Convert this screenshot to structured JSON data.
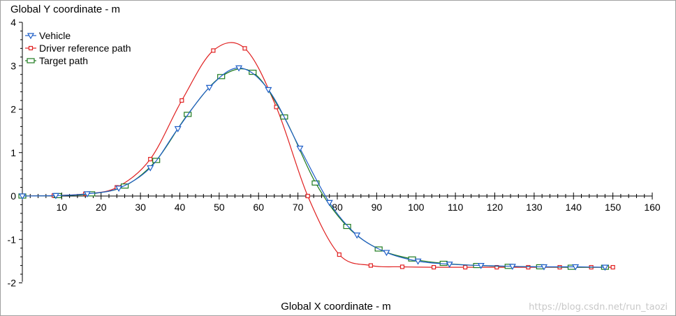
{
  "chart_data": {
    "type": "line",
    "title": "",
    "ylabel": "Global Y coordinate - m",
    "xlabel": "Global X coordinate - m",
    "xlim": [
      0,
      160
    ],
    "ylim": [
      -2,
      4
    ],
    "x_ticks": [
      10,
      20,
      30,
      40,
      50,
      60,
      70,
      80,
      90,
      100,
      110,
      120,
      130,
      140,
      150,
      160
    ],
    "y_ticks": [
      -2,
      -1,
      0,
      1,
      2,
      3,
      4
    ],
    "grid": false,
    "legend_position": "top-left",
    "series": [
      {
        "name": "Vehicle",
        "color": "#1f5fc8",
        "marker": "triangle-down",
        "x": [
          0,
          8.5,
          16.5,
          24.5,
          32.5,
          39.5,
          47.5,
          55,
          62.5,
          70.5,
          78,
          85,
          92.5,
          100.5,
          108.5,
          116.5,
          124.5,
          132.5,
          140.5,
          148
        ],
        "y": [
          0.0,
          0.01,
          0.05,
          0.18,
          0.65,
          1.55,
          2.5,
          2.95,
          2.45,
          1.1,
          -0.15,
          -0.9,
          -1.3,
          -1.5,
          -1.57,
          -1.6,
          -1.62,
          -1.63,
          -1.63,
          -1.64
        ]
      },
      {
        "name": "Driver reference path",
        "color": "#e02020",
        "marker": "square",
        "x": [
          0,
          8,
          16,
          24,
          32.5,
          40.5,
          48.5,
          56.5,
          64.5,
          72.5,
          80.5,
          88.5,
          96.5,
          104.5,
          112.5,
          120.5,
          128.5,
          136.5,
          144.5,
          150
        ],
        "y": [
          0.0,
          0.01,
          0.05,
          0.2,
          0.85,
          2.2,
          3.35,
          3.4,
          2.05,
          0.0,
          -1.35,
          -1.6,
          -1.63,
          -1.64,
          -1.64,
          -1.64,
          -1.64,
          -1.64,
          -1.64,
          -1.64
        ]
      },
      {
        "name": "Target path",
        "color": "#1e7a1e",
        "marker": "rect",
        "x": [
          0,
          9,
          17.5,
          26,
          34,
          42,
          50.5,
          58.5,
          66.5,
          74.5,
          82.5,
          90.5,
          99,
          107,
          115.5,
          123.5,
          131.5,
          139.5,
          148
        ],
        "y": [
          0.0,
          0.01,
          0.05,
          0.23,
          0.82,
          1.88,
          2.75,
          2.85,
          1.82,
          0.3,
          -0.7,
          -1.22,
          -1.45,
          -1.55,
          -1.6,
          -1.62,
          -1.63,
          -1.64,
          -1.64
        ]
      }
    ]
  },
  "watermark": "https://blog.csdn.net/run_taozi"
}
